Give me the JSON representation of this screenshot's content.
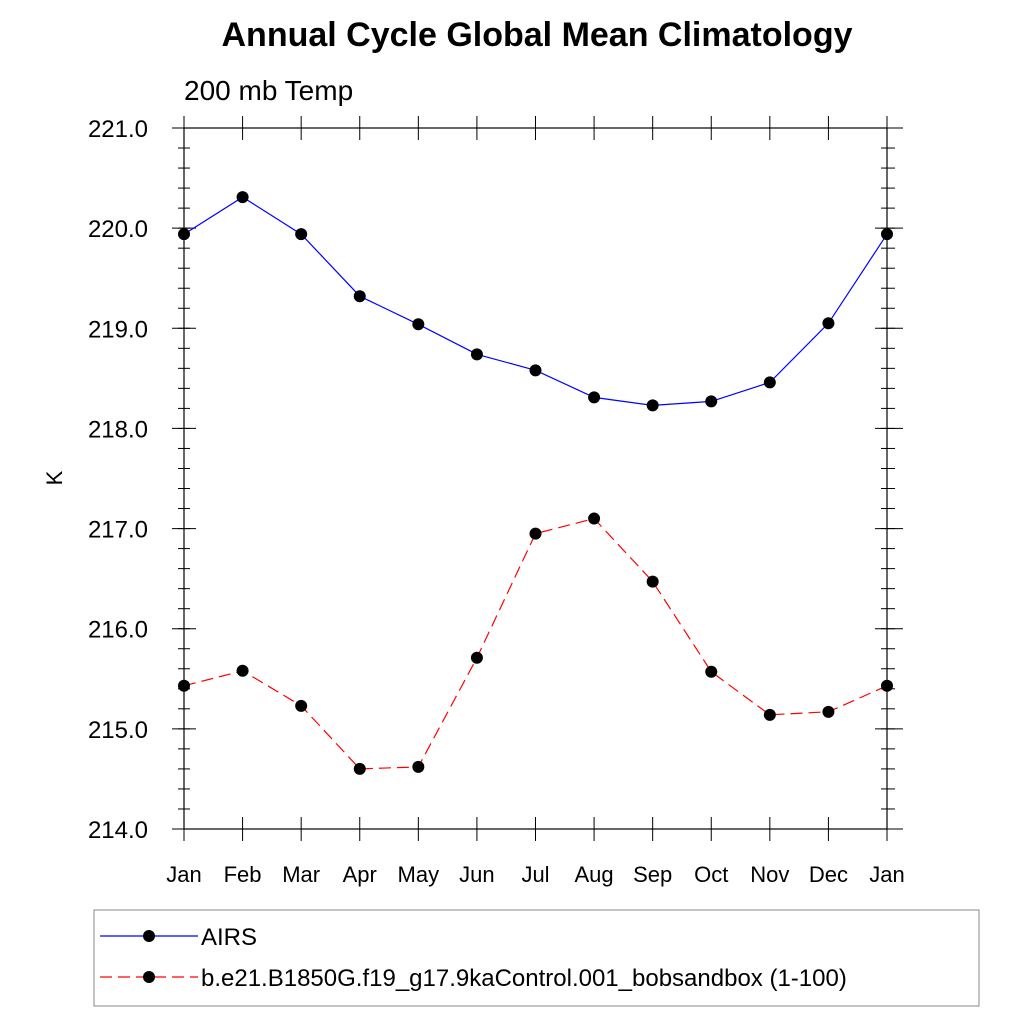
{
  "chart_data": {
    "type": "line",
    "title": "Annual Cycle Global Mean Climatology",
    "subtitle": "200 mb Temp",
    "xlabel": "",
    "ylabel": "K",
    "categories": [
      "Jan",
      "Feb",
      "Mar",
      "Apr",
      "May",
      "Jun",
      "Jul",
      "Aug",
      "Sep",
      "Oct",
      "Nov",
      "Dec",
      "Jan"
    ],
    "ylim": [
      214.0,
      221.0
    ],
    "yticks": [
      "214.0",
      "215.0",
      "216.0",
      "217.0",
      "218.0",
      "219.0",
      "220.0",
      "221.0"
    ],
    "grid": false,
    "legend_position": "bottom",
    "series": [
      {
        "name": "AIRS",
        "color": "#0000ff",
        "dash": "solid",
        "values": [
          219.94,
          220.31,
          219.94,
          219.32,
          219.04,
          218.74,
          218.58,
          218.31,
          218.23,
          218.27,
          218.46,
          219.05,
          219.94
        ]
      },
      {
        "name": "b.e21.B1850G.f19_g17.9kaControl.001_bobsandbox (1-100)",
        "color": "#ff0000",
        "dash": "dashed",
        "values": [
          215.43,
          215.58,
          215.23,
          214.6,
          214.62,
          215.71,
          216.95,
          217.1,
          216.47,
          215.57,
          215.14,
          215.17,
          215.43
        ]
      }
    ]
  }
}
